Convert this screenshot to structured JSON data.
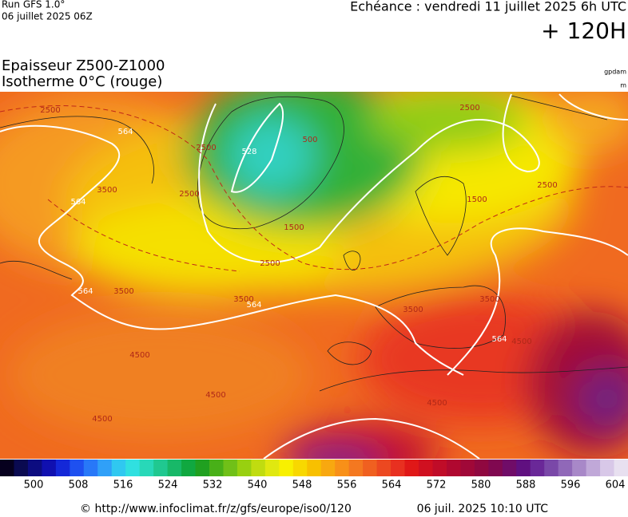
{
  "header": {
    "model": "Run GFS 1.0°",
    "run": "06 juillet 2025 06Z",
    "valid": "Echéance : vendredi 11 juillet 2025 6h UTC",
    "lead": "+ 120H"
  },
  "title": {
    "line1": "Epaisseur Z500-Z1000",
    "line2": "Isotherme 0°C (rouge)",
    "unit1": "gpdam",
    "unit2": "m"
  },
  "map": {
    "contour_labels": [
      "2500",
      "564",
      "3500",
      "564",
      "2500",
      "528",
      "500",
      "1500",
      "2500",
      "3500",
      "564",
      "3500",
      "564",
      "4500",
      "4500",
      "4500",
      "2500",
      "2500",
      "1500",
      "3500",
      "3500",
      "564",
      "4500",
      "4500",
      "2500"
    ]
  },
  "colorbar": {
    "ticks": [
      500,
      508,
      516,
      524,
      532,
      540,
      548,
      556,
      564,
      572,
      580,
      588,
      596,
      604
    ],
    "colors": [
      "#06001e",
      "#0a0a50",
      "#0c0c80",
      "#1010b0",
      "#1428d8",
      "#1e50f0",
      "#2878f8",
      "#30a0f8",
      "#30c8f0",
      "#30e0e0",
      "#28d8b8",
      "#20c890",
      "#18b868",
      "#10a840",
      "#20a020",
      "#48b018",
      "#70c018",
      "#98d010",
      "#c0dc10",
      "#e0e810",
      "#f8f000",
      "#f8d800",
      "#f8c000",
      "#f8a810",
      "#f89018",
      "#f47820",
      "#f06020",
      "#ec4820",
      "#e83020",
      "#e01818",
      "#d01020",
      "#c00c28",
      "#b00830",
      "#a00838",
      "#900840",
      "#800850",
      "#700c68",
      "#601080",
      "#6a2898",
      "#7a48a8",
      "#9068b8",
      "#a888c8",
      "#c0a8d8",
      "#d8c8e8",
      "#e8e0f0"
    ]
  },
  "footer": {
    "source": "© http://www.infoclimat.fr/z/gfs/europe/iso0/120",
    "date": "06 juil. 2025 10:10 UTC"
  }
}
